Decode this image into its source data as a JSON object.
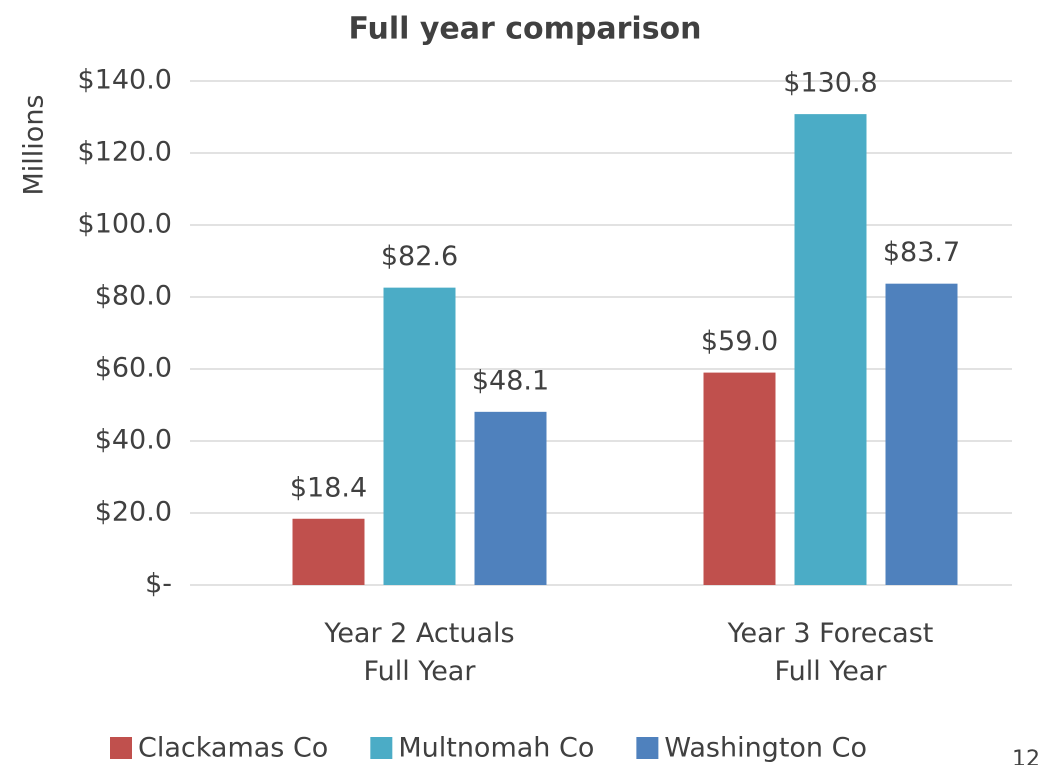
{
  "chart_data": {
    "type": "bar",
    "title": "Full year comparison",
    "y_label": "Millions",
    "categories": [
      "Year 2 Actuals\nFull Year",
      "Year 3 Forecast\nFull Year"
    ],
    "series": [
      {
        "name": "Clackamas Co",
        "color": "#c0504d",
        "values": [
          18.4,
          59.0
        ],
        "value_labels": [
          "$18.4",
          "$59.0"
        ]
      },
      {
        "name": "Multnomah Co",
        "color": "#4bacc6",
        "values": [
          82.6,
          130.8
        ],
        "value_labels": [
          "$82.6",
          "$130.8"
        ]
      },
      {
        "name": "Washington Co",
        "color": "#4f81bd",
        "values": [
          48.1,
          83.7
        ],
        "value_labels": [
          "$48.1",
          "$83.7"
        ]
      }
    ],
    "ylim": [
      0,
      140
    ],
    "yticks": [
      {
        "value": 0,
        "label": "$-"
      },
      {
        "value": 20,
        "label": "$20.0"
      },
      {
        "value": 40,
        "label": "$40.0"
      },
      {
        "value": 60,
        "label": "$60.0"
      },
      {
        "value": 80,
        "label": "$80.0"
      },
      {
        "value": 100,
        "label": "$100.0"
      },
      {
        "value": 120,
        "label": "$120.0"
      },
      {
        "value": 140,
        "label": "$140.0"
      }
    ],
    "grid": true,
    "legend": "bottom",
    "page_number": "12"
  }
}
